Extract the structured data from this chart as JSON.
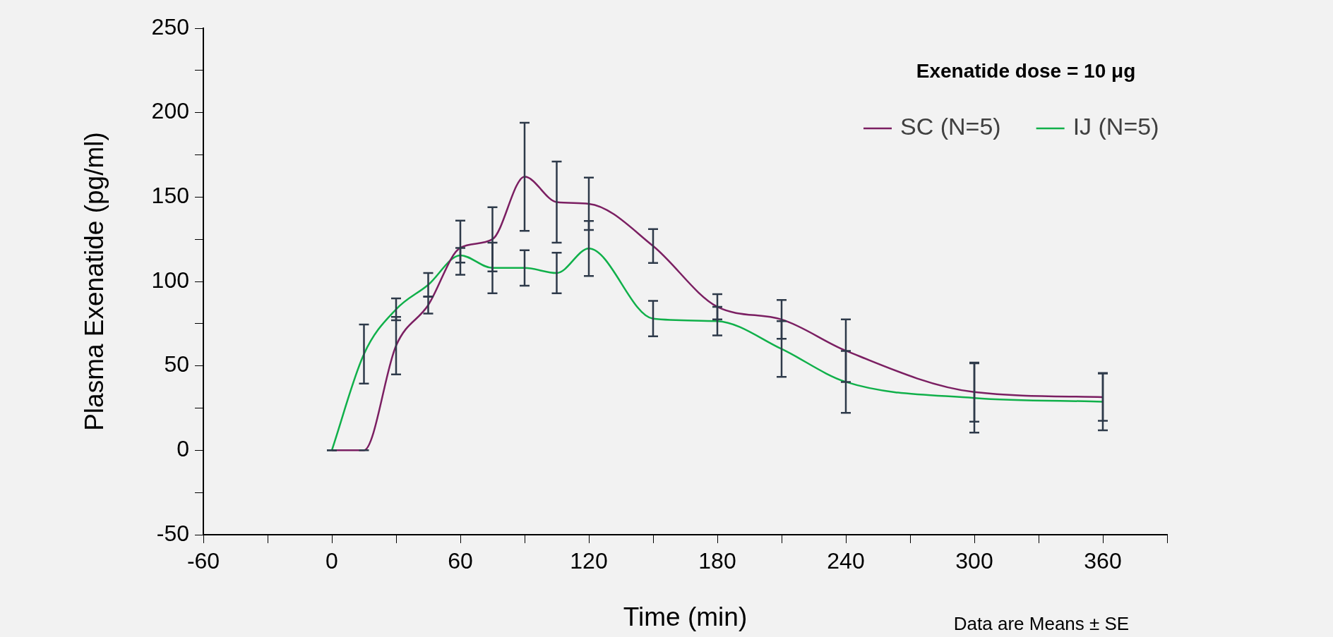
{
  "chart_data": {
    "type": "line",
    "xlabel": "Time (min)",
    "ylabel": "Plasma Exenatide (pg/ml)",
    "legend_title": "Exenatide dose = 10 μg",
    "annotations": [
      "Data are Means ± SE"
    ],
    "x": [
      0,
      15,
      30,
      45,
      60,
      75,
      90,
      105,
      120,
      150,
      180,
      210,
      240,
      300,
      360
    ],
    "series": [
      {
        "name": "SC (N=5)",
        "color": "#7b1f62",
        "values": [
          0,
          0,
          62,
          86,
          120,
          125,
          162,
          147,
          146,
          121,
          85,
          77.5,
          59,
          34.5,
          31.5
        ],
        "errors": [
          0,
          0,
          17,
          5,
          16,
          19,
          32,
          24,
          15.5,
          10,
          7.5,
          11.5,
          18.5,
          17.5,
          14
        ]
      },
      {
        "name": "IJ (N=5)",
        "color": "#10b04a",
        "values": [
          0,
          57,
          83.5,
          98,
          115.5,
          108,
          108,
          105,
          119.5,
          78,
          76.5,
          60,
          40.5,
          31,
          28.8
        ],
        "errors": [
          0,
          17.5,
          6.5,
          7,
          4.3,
          15,
          10.5,
          12,
          16.3,
          10.5,
          8.5,
          16.5,
          18.3,
          20.5,
          17
        ]
      }
    ],
    "xlim": [
      -60,
      390
    ],
    "xticks": [
      -60,
      {
        "value": -30,
        "label": null
      },
      0,
      {
        "value": 30,
        "label": null
      },
      60,
      {
        "value": 90,
        "label": null
      },
      120,
      {
        "value": 150,
        "label": null
      },
      180,
      {
        "value": 210,
        "label": null
      },
      240,
      {
        "value": 270,
        "label": null
      },
      300,
      {
        "value": 330,
        "label": null
      },
      360,
      {
        "value": 390,
        "label": null
      }
    ],
    "ylim": [
      -50,
      250
    ],
    "yticks": [
      -50,
      {
        "value": -25,
        "label": null
      },
      0,
      {
        "value": 25,
        "label": null
      },
      50,
      {
        "value": 75,
        "label": null
      },
      100,
      {
        "value": 125,
        "label": null
      },
      150,
      {
        "value": 175,
        "label": null
      },
      200,
      {
        "value": 225,
        "label": null
      },
      250
    ],
    "grid": false,
    "legend": "top right",
    "marker": "none",
    "line_style": "solid"
  }
}
